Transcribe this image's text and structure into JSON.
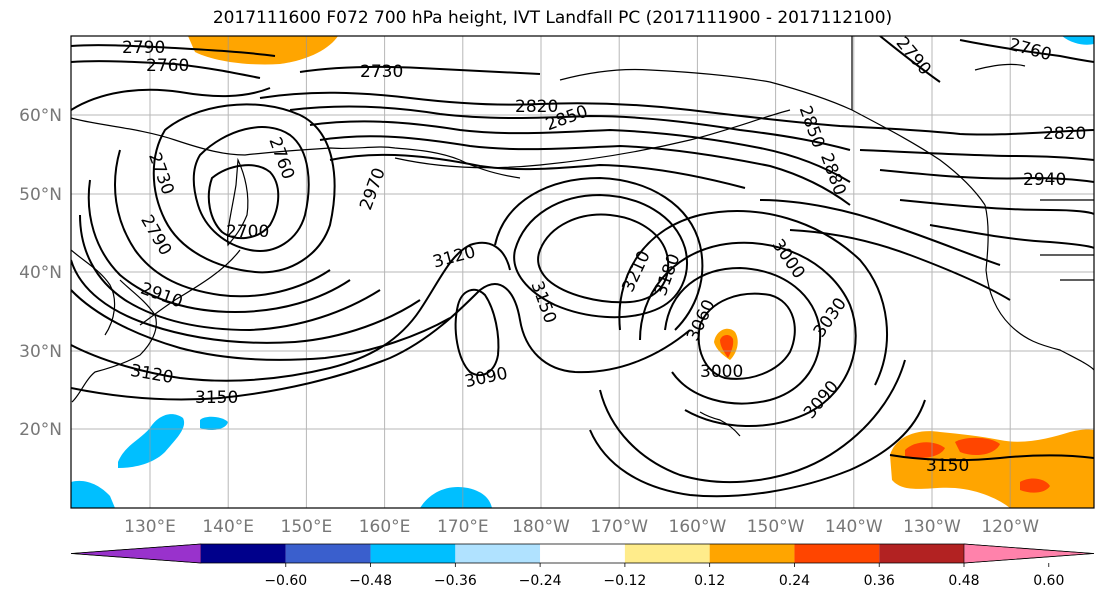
{
  "title": "2017111600 F072 700 hPa height, IVT Landfall PC (2017111900 - 2017112100)",
  "latitudes": [
    "60°N",
    "50°N",
    "40°N",
    "30°N",
    "20°N"
  ],
  "longitudes": [
    "130°E",
    "140°E",
    "150°E",
    "160°E",
    "170°E",
    "180°W",
    "170°W",
    "160°W",
    "150°W",
    "140°W",
    "130°W",
    "120°W"
  ],
  "contour_labels": [
    "2790",
    "2760",
    "2730",
    "2820",
    "2850",
    "2760",
    "2730",
    "2790",
    "2910",
    "2700",
    "2970",
    "3120",
    "3150",
    "3090",
    "3120",
    "3150",
    "3210",
    "3180",
    "3060",
    "3000",
    "3000",
    "3030",
    "3090",
    "2850",
    "2880",
    "2820",
    "2940",
    "2760",
    "2790",
    "3150"
  ],
  "colorbar": {
    "ticks": [
      "−0.60",
      "−0.48",
      "−0.36",
      "−0.24",
      "−0.12",
      "0.12",
      "0.24",
      "0.36",
      "0.48",
      "0.60"
    ],
    "colors": [
      "#9932cc",
      "#00008b",
      "#3a5fcd",
      "#00bfff",
      "#b0e2ff",
      "#ffffff",
      "#ffec8b",
      "#ffa500",
      "#ff4500",
      "#b22222",
      "#ff82ab"
    ]
  },
  "shading": {
    "negative_color": "#00bfff",
    "positive_color": "#ffa500",
    "strong_positive_color": "#ff4500"
  }
}
